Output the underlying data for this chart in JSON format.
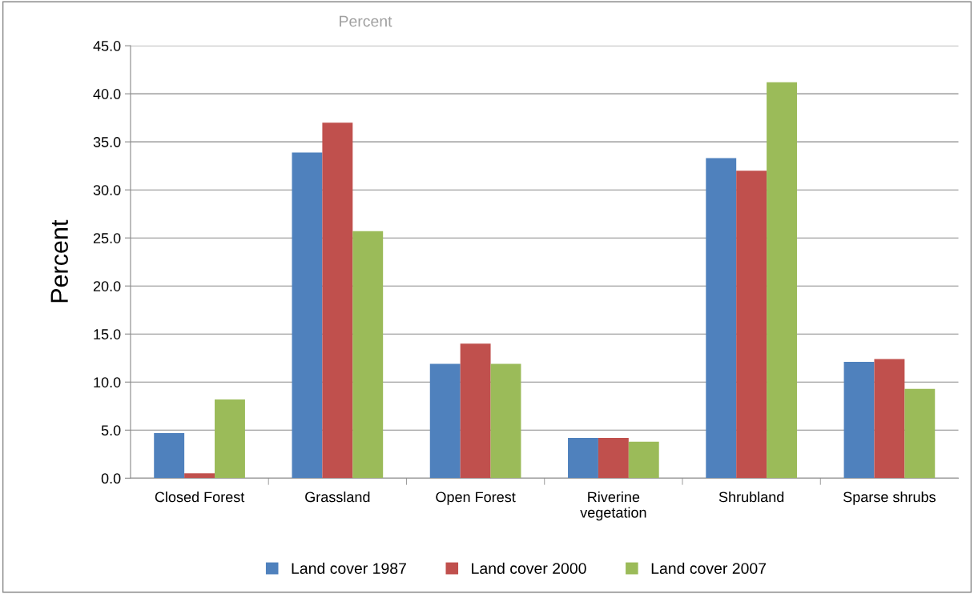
{
  "chart_data": {
    "type": "bar",
    "title": "Percent",
    "ylabel": "Percent",
    "categories": [
      "Closed Forest",
      "Grassland",
      "Open Forest",
      "Riverine\nvegetation",
      "Shrubland",
      "Sparse shrubs"
    ],
    "series": [
      {
        "name": "Land cover 1987",
        "color": "#4f81bd",
        "values": [
          4.7,
          33.9,
          11.9,
          4.2,
          33.3,
          12.1
        ]
      },
      {
        "name": "Land cover 2000",
        "color": "#c0504d",
        "values": [
          0.5,
          37.0,
          14.0,
          4.2,
          32.0,
          12.4
        ]
      },
      {
        "name": "Land cover 2007",
        "color": "#9bbb59",
        "values": [
          8.2,
          25.7,
          11.9,
          3.8,
          41.2,
          9.3
        ]
      }
    ],
    "ylim": [
      0,
      45
    ],
    "yticks": [
      {
        "value": 0,
        "label": "0.0"
      },
      {
        "value": 5,
        "label": "5.0"
      },
      {
        "value": 10,
        "label": "10.0"
      },
      {
        "value": 15,
        "label": "15.0"
      },
      {
        "value": 20,
        "label": "20.0"
      },
      {
        "value": 25,
        "label": "25.0"
      },
      {
        "value": 30,
        "label": "30.0"
      },
      {
        "value": 35,
        "label": "35.0"
      },
      {
        "value": 40,
        "label": "40.0"
      },
      {
        "value": 45,
        "label": "45.0"
      }
    ],
    "grid": "y",
    "legend": "bottom"
  }
}
